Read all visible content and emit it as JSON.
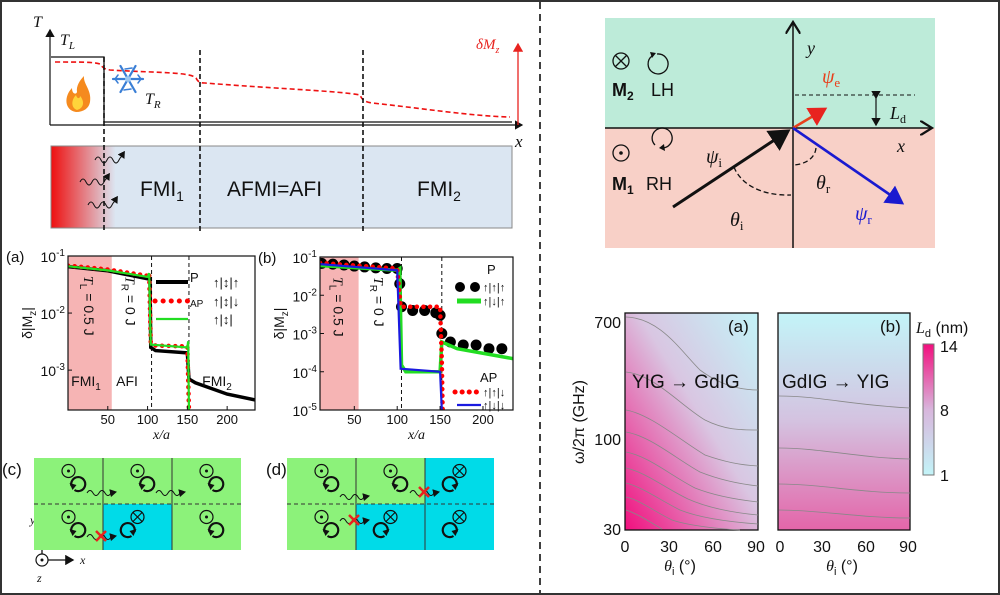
{
  "schematic": {
    "t_axis": "T",
    "tl": "T",
    "tl_sub": "L",
    "tr": "T",
    "tr_sub": "R",
    "dmz": "δM",
    "dmz_sub": "z",
    "x_axis": "x",
    "fmi1": "FMI",
    "fmi1_sub": "1",
    "afi": "AFMI=AFI",
    "fmi2": "FMI",
    "fmi2_sub": "2"
  },
  "reflection": {
    "m2": "M",
    "m2_sub": "2",
    "lh": "LH",
    "m1": "M",
    "m1_sub": "1",
    "rh": "RH",
    "y": "y",
    "x": "x",
    "psi_e": "ψ",
    "psi_e_sub": "e",
    "psi_i": "ψ",
    "psi_i_sub": "i",
    "psi_r": "ψ",
    "psi_r_sub": "r",
    "theta_i": "θ",
    "theta_i_sub": "i",
    "theta_r": "θ",
    "theta_r_sub": "r",
    "ld": "L",
    "ld_sub": "d",
    "colors": {
      "upper": "#bdebd9",
      "lower": "#f8d0c7",
      "psi_e": "#e8401c",
      "psi_r": "#1a1ad0"
    }
  },
  "panel_c": {
    "label": "(c)",
    "axis_y": "y",
    "axis_x": "x",
    "axis_z": "z"
  },
  "panel_d": {
    "label": "(d)"
  },
  "domain_colors": {
    "green": "#8cf27a",
    "cyan": "#00dbe8",
    "block": "#e8231f"
  },
  "chart_data": [
    {
      "type": "line",
      "panel": "(a)",
      "xlabel": "x/a",
      "ylabel": "δ|M",
      "ylabel_sub": "z",
      "ylabel_end": "|",
      "xlim": [
        0,
        235
      ],
      "ylim": [
        0.0002,
        0.1
      ],
      "yscale": "log",
      "xticks": [
        "50",
        "100",
        "150",
        "200"
      ],
      "xtick_values": [
        50,
        100,
        150,
        200
      ],
      "yticks": [
        {
          "base": "10",
          "exp": "-1",
          "value": 0.1
        },
        {
          "base": "10",
          "exp": "-2",
          "value": 0.01
        },
        {
          "base": "10",
          "exp": "-3",
          "value": 0.001
        }
      ],
      "shaded_region": [
        0,
        55
      ],
      "boundaries": [
        105,
        152
      ],
      "annotations": {
        "tl": "T",
        "tl_sub": "L",
        "tl_val": " = 0.5 J",
        "tr": "T",
        "tr_sub": "R",
        "tr_val": " = 0 J",
        "r1": "FMI",
        "r1_sub": "1",
        "r2": "AFI",
        "r3": "FMI",
        "r3_sub": "2"
      },
      "series": [
        {
          "name": "P",
          "config": "↑|↕|↑",
          "color": "#000000",
          "style": "solid-thick",
          "points": [
            [
              0,
              0.065
            ],
            [
              50,
              0.055
            ],
            [
              100,
              0.04
            ],
            [
              103,
              0.04
            ],
            [
              104,
              0.0025
            ],
            [
              110,
              0.0022
            ],
            [
              150,
              0.002
            ],
            [
              152,
              0.0007
            ],
            [
              160,
              0.0006
            ],
            [
              200,
              0.00038
            ],
            [
              235,
              0.0003
            ]
          ]
        },
        {
          "name": "AP",
          "config": "↑|↕|↓",
          "color": "#ff0000",
          "style": "dots",
          "points": [
            [
              0,
              0.068
            ],
            [
              50,
              0.058
            ],
            [
              100,
              0.045
            ],
            [
              102,
              0.05
            ],
            [
              104,
              0.003
            ],
            [
              110,
              0.0027
            ],
            [
              150,
              0.0026
            ],
            [
              152,
              0.0002
            ]
          ]
        },
        {
          "name": "",
          "config": "↑|↕|",
          "color": "#22dd22",
          "style": "solid",
          "points": [
            [
              0,
              0.066
            ],
            [
              50,
              0.056
            ],
            [
              100,
              0.043
            ],
            [
              102,
              0.05
            ],
            [
              104,
              0.0028
            ],
            [
              150,
              0.0025
            ],
            [
              151,
              0.0032
            ],
            [
              152,
              0.0002
            ]
          ]
        }
      ]
    },
    {
      "type": "line",
      "panel": "(b)",
      "xlabel": "x/a",
      "ylabel": "δ|M",
      "ylabel_sub": "z",
      "ylabel_end": "|",
      "xlim": [
        10,
        235
      ],
      "ylim": [
        1e-05,
        0.1
      ],
      "yscale": "log",
      "xticks": [
        "50",
        "100",
        "150",
        "200"
      ],
      "xtick_values": [
        50,
        100,
        150,
        200
      ],
      "yticks": [
        {
          "base": "10",
          "exp": "-1",
          "value": 0.1
        },
        {
          "base": "10",
          "exp": "-2",
          "value": 0.01
        },
        {
          "base": "10",
          "exp": "-3",
          "value": 0.001
        },
        {
          "base": "10",
          "exp": "-4",
          "value": 0.0001
        },
        {
          "base": "10",
          "exp": "-5",
          "value": 1e-05
        }
      ],
      "shaded_region": [
        10,
        55
      ],
      "boundaries": [
        105,
        152
      ],
      "annotations": {
        "tl": "T",
        "tl_sub": "L",
        "tl_val": " = 0.5 J",
        "tr": "T",
        "tr_sub": "R",
        "tr_val": " = 0 J"
      },
      "legend_groups": [
        "P",
        "AP"
      ],
      "series": [
        {
          "name": "P",
          "config": "↑|↑|↑",
          "color": "#000000",
          "style": "bigdots",
          "points": [
            [
              12,
              0.068
            ],
            [
              25,
              0.065
            ],
            [
              38,
              0.062
            ],
            [
              50,
              0.058
            ],
            [
              62,
              0.055
            ],
            [
              75,
              0.052
            ],
            [
              88,
              0.05
            ],
            [
              100,
              0.05
            ],
            [
              103,
              0.02
            ],
            [
              105,
              0.005
            ],
            [
              118,
              0.004
            ],
            [
              132,
              0.004
            ],
            [
              145,
              0.0035
            ],
            [
              150,
              0.003
            ],
            [
              152,
              0.001
            ],
            [
              162,
              0.0006
            ],
            [
              177,
              0.0005
            ],
            [
              192,
              0.0005
            ],
            [
              207,
              0.0004
            ],
            [
              222,
              0.0004
            ]
          ]
        },
        {
          "name": "P",
          "config": "↑|↓|↑",
          "color": "#22dd22",
          "style": "solid-thick",
          "points": [
            [
              10,
              0.06
            ],
            [
              100,
              0.045
            ],
            [
              103,
              0.05
            ],
            [
              105,
              0.00015
            ],
            [
              110,
              0.0001
            ],
            [
              150,
              0.0001
            ],
            [
              152,
              0.0006
            ],
            [
              170,
              0.0004
            ],
            [
              235,
              0.00022
            ]
          ]
        },
        {
          "name": "AP",
          "config": "↑|↑|↓",
          "color": "#ff0000",
          "style": "dots",
          "points": [
            [
              10,
              0.07
            ],
            [
              100,
              0.05
            ],
            [
              104,
              0.005
            ],
            [
              150,
              0.005
            ],
            [
              152,
              0.0002
            ],
            [
              153,
              1e-05
            ]
          ]
        },
        {
          "name": "AP",
          "config": "↑|↓|↓",
          "color": "#1a1ae0",
          "style": "solid",
          "points": [
            [
              10,
              0.065
            ],
            [
              100,
              0.045
            ],
            [
              104,
              0.00012
            ],
            [
              150,
              0.0001
            ],
            [
              152,
              1e-05
            ]
          ]
        }
      ]
    },
    {
      "type": "heatmap",
      "panel": "(a)",
      "label": "YIG → GdIG",
      "xlabel": "θ",
      "xlabel_sub": "i",
      "xlabel_unit": " (°)",
      "ylabel": "ω/2π (GHz)",
      "xlim": [
        0,
        90
      ],
      "xticks": [
        "0",
        "30",
        "60",
        "90"
      ],
      "yscale": "log",
      "yticks": [
        "700",
        "100",
        "30"
      ],
      "colorbar": {
        "label": "L",
        "label_sub": "d",
        "unit": " (nm)",
        "ticks": [
          "14",
          "8",
          "1"
        ],
        "range": [
          1,
          14
        ],
        "low_color": "#c3f4f8",
        "high_color": "#f0107e"
      }
    },
    {
      "type": "heatmap",
      "panel": "(b)",
      "label": "GdIG → YIG",
      "xlabel": "θ",
      "xlabel_sub": "i",
      "xlabel_unit": " (°)",
      "xlim": [
        0,
        90
      ],
      "xticks": [
        "0",
        "30",
        "60",
        "90"
      ]
    }
  ]
}
